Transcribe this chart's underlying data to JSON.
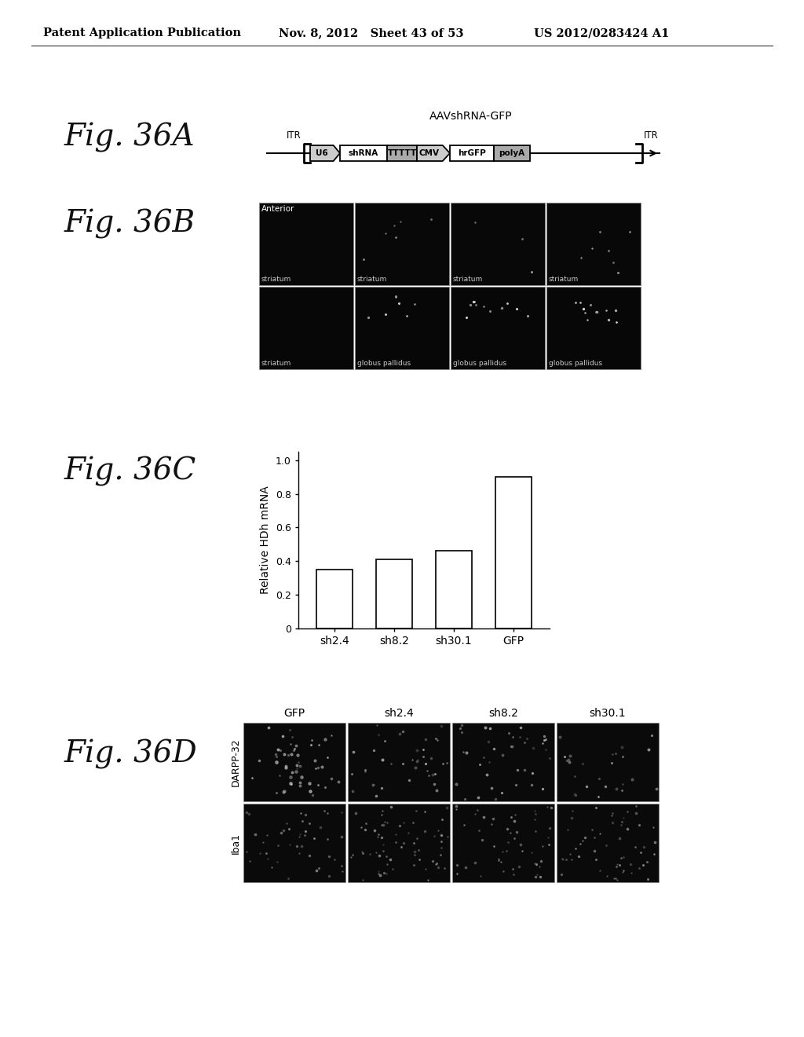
{
  "header_left": "Patent Application Publication",
  "header_mid": "Nov. 8, 2012   Sheet 43 of 53",
  "header_right": "US 2012/0283424 A1",
  "fig36A_label": "Fig. 36A",
  "fig36B_label": "Fig. 36B",
  "fig36C_label": "Fig. 36C",
  "fig36D_label": "Fig. 36D",
  "aav_title": "AAVshRNA-GFP",
  "itr_left": "ITR",
  "itr_right": "ITR",
  "diagram_elements": [
    "U6",
    "shRNA",
    "TTTTT",
    "CMV",
    "hrGFP",
    "polyA"
  ],
  "fig36B_row1_top_label": "Anterior",
  "fig36B_row1_labels": [
    "striatum",
    "striatum",
    "striatum",
    "striatum"
  ],
  "fig36B_row2_labels": [
    "striatum",
    "globus pallidus",
    "globus pallidus",
    "globus pallidus"
  ],
  "bar_categories": [
    "sh2.4",
    "sh8.2",
    "sh30.1",
    "GFP"
  ],
  "bar_values": [
    0.35,
    0.41,
    0.46,
    0.9
  ],
  "bar_color": "#ffffff",
  "bar_edge_color": "#000000",
  "ylabel": "Relative HDh mRNA",
  "ylim": [
    0,
    1.0
  ],
  "yticks": [
    0,
    0.2,
    0.4,
    0.6,
    0.8,
    1.0
  ],
  "fig36D_col_labels": [
    "GFP",
    "sh2.4",
    "sh8.2",
    "sh30.1"
  ],
  "fig36D_row_labels": [
    "DARPP-32",
    "Iba1"
  ],
  "bg_color": "#ffffff",
  "text_color": "#000000"
}
